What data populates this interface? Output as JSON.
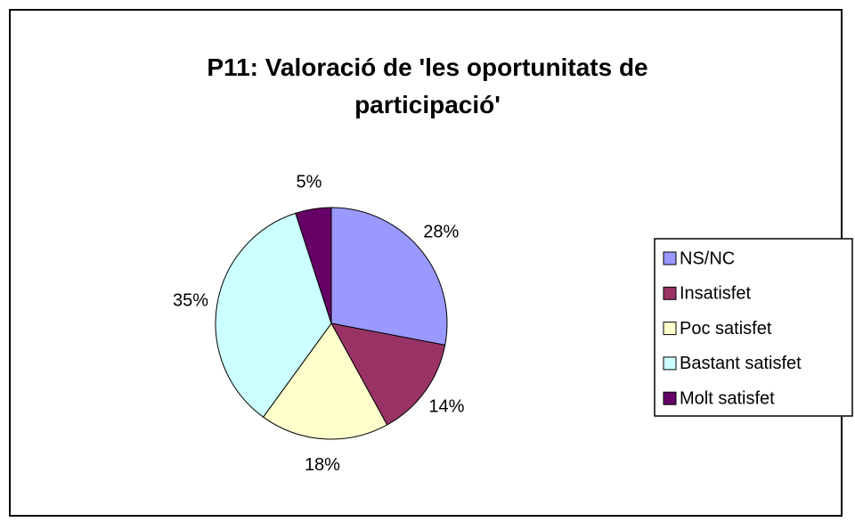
{
  "chart_data": {
    "type": "pie",
    "title": "P11: Valoració de 'les oportunitats de participació'",
    "categories": [
      "NS/NC",
      "Insatisfet",
      "Poc satisfet",
      "Bastant satisfet",
      "Molt satisfet"
    ],
    "values": [
      28,
      14,
      18,
      35,
      5
    ],
    "value_labels": [
      "28%",
      "14%",
      "18%",
      "35%",
      "5%"
    ],
    "colors": [
      "#9999ff",
      "#993366",
      "#ffffcc",
      "#ccffff",
      "#660066"
    ],
    "legend": "right"
  }
}
